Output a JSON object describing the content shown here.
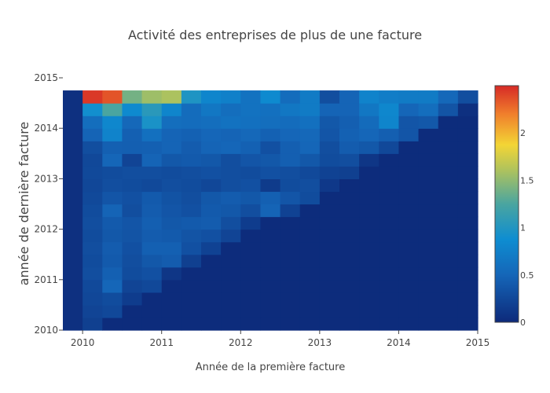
{
  "chart_data": {
    "type": "heatmap",
    "title": "Activité des entreprises de plus de une facture",
    "xlabel": "Année de la première facture",
    "ylabel": "année de dernière facture",
    "xlim": [
      2009.75,
      2015
    ],
    "ylim": [
      2010,
      2015
    ],
    "x_ticks": [
      "2010",
      "2011",
      "2012",
      "2013",
      "2014",
      "2015"
    ],
    "y_ticks": [
      "2010",
      "2011",
      "2012",
      "2013",
      "2014",
      "2015"
    ],
    "x_start": 2009.75,
    "y_start": 2010,
    "cell_size_years": 0.25,
    "colorscale": [
      [
        0.0,
        "#0d2a7a"
      ],
      [
        0.2,
        "#1566b8"
      ],
      [
        0.35,
        "#0e8dd1"
      ],
      [
        0.5,
        "#4aa5a0"
      ],
      [
        0.65,
        "#b3c45a"
      ],
      [
        0.75,
        "#f3d535"
      ],
      [
        0.88,
        "#f07f2c"
      ],
      [
        1.0,
        "#d62a26"
      ]
    ],
    "zmin": 0,
    "zmax": 2.5,
    "colorbar_ticks": [
      "0",
      "0.5",
      "1",
      "1.5",
      "2"
    ],
    "z": [
      [
        0.05,
        0.18,
        0.02,
        0.02,
        0.02,
        0.02,
        0.02,
        0.02,
        0.02,
        0.02,
        0.02,
        0.02,
        0.02,
        0.02,
        0.02,
        0.02,
        0.02,
        0.02,
        0.02,
        0.02,
        0.02
      ],
      [
        0.05,
        0.22,
        0.25,
        0.02,
        0.02,
        0.02,
        0.02,
        0.02,
        0.02,
        0.02,
        0.02,
        0.02,
        0.02,
        0.02,
        0.02,
        0.02,
        0.02,
        0.02,
        0.02,
        0.02,
        0.02
      ],
      [
        0.05,
        0.24,
        0.28,
        0.15,
        0.02,
        0.02,
        0.02,
        0.02,
        0.02,
        0.02,
        0.02,
        0.02,
        0.02,
        0.02,
        0.02,
        0.02,
        0.02,
        0.02,
        0.02,
        0.02,
        0.02
      ],
      [
        0.05,
        0.26,
        0.5,
        0.22,
        0.25,
        0.02,
        0.02,
        0.02,
        0.02,
        0.02,
        0.02,
        0.02,
        0.02,
        0.02,
        0.02,
        0.02,
        0.02,
        0.02,
        0.02,
        0.02,
        0.02
      ],
      [
        0.05,
        0.3,
        0.45,
        0.28,
        0.32,
        0.1,
        0.02,
        0.02,
        0.02,
        0.02,
        0.02,
        0.02,
        0.02,
        0.02,
        0.02,
        0.02,
        0.02,
        0.02,
        0.02,
        0.02,
        0.02
      ],
      [
        0.05,
        0.28,
        0.4,
        0.3,
        0.38,
        0.42,
        0.18,
        0.02,
        0.02,
        0.02,
        0.02,
        0.02,
        0.02,
        0.02,
        0.02,
        0.02,
        0.02,
        0.02,
        0.02,
        0.02,
        0.02
      ],
      [
        0.05,
        0.3,
        0.42,
        0.32,
        0.45,
        0.45,
        0.32,
        0.2,
        0.02,
        0.02,
        0.02,
        0.02,
        0.02,
        0.02,
        0.02,
        0.02,
        0.02,
        0.02,
        0.02,
        0.02,
        0.02
      ],
      [
        0.05,
        0.28,
        0.38,
        0.35,
        0.42,
        0.4,
        0.35,
        0.32,
        0.22,
        0.02,
        0.02,
        0.02,
        0.02,
        0.02,
        0.02,
        0.02,
        0.02,
        0.02,
        0.02,
        0.02,
        0.02
      ],
      [
        0.05,
        0.3,
        0.4,
        0.36,
        0.44,
        0.38,
        0.4,
        0.42,
        0.3,
        0.15,
        0.02,
        0.02,
        0.02,
        0.02,
        0.02,
        0.02,
        0.02,
        0.02,
        0.02,
        0.02,
        0.02
      ],
      [
        0.05,
        0.28,
        0.48,
        0.3,
        0.42,
        0.36,
        0.32,
        0.4,
        0.38,
        0.3,
        0.48,
        0.2,
        0.02,
        0.02,
        0.02,
        0.02,
        0.02,
        0.02,
        0.02,
        0.02,
        0.02
      ],
      [
        0.05,
        0.26,
        0.36,
        0.32,
        0.4,
        0.34,
        0.3,
        0.38,
        0.42,
        0.38,
        0.45,
        0.36,
        0.28,
        0.02,
        0.02,
        0.02,
        0.02,
        0.02,
        0.02,
        0.02,
        0.02
      ],
      [
        0.05,
        0.24,
        0.3,
        0.28,
        0.26,
        0.3,
        0.28,
        0.24,
        0.3,
        0.32,
        0.14,
        0.28,
        0.3,
        0.12,
        0.02,
        0.02,
        0.02,
        0.02,
        0.02,
        0.02,
        0.02
      ],
      [
        0.05,
        0.26,
        0.28,
        0.3,
        0.3,
        0.28,
        0.3,
        0.32,
        0.3,
        0.28,
        0.32,
        0.3,
        0.26,
        0.2,
        0.18,
        0.02,
        0.02,
        0.02,
        0.02,
        0.02,
        0.02
      ],
      [
        0.05,
        0.25,
        0.5,
        0.22,
        0.48,
        0.38,
        0.4,
        0.38,
        0.3,
        0.36,
        0.38,
        0.44,
        0.38,
        0.28,
        0.3,
        0.1,
        0.02,
        0.02,
        0.02,
        0.02,
        0.02
      ],
      [
        0.05,
        0.3,
        0.45,
        0.44,
        0.45,
        0.48,
        0.42,
        0.48,
        0.5,
        0.46,
        0.32,
        0.44,
        0.5,
        0.3,
        0.42,
        0.38,
        0.25,
        0.02,
        0.02,
        0.02,
        0.02
      ],
      [
        0.05,
        0.48,
        0.78,
        0.45,
        0.6,
        0.48,
        0.46,
        0.5,
        0.48,
        0.52,
        0.46,
        0.5,
        0.52,
        0.36,
        0.46,
        0.5,
        0.44,
        0.36,
        0.02,
        0.02,
        0.02
      ],
      [
        0.05,
        0.58,
        0.82,
        0.52,
        0.95,
        0.58,
        0.56,
        0.58,
        0.62,
        0.6,
        0.58,
        0.56,
        0.6,
        0.38,
        0.44,
        0.55,
        0.8,
        0.36,
        0.38,
        0.02,
        0.02
      ],
      [
        0.05,
        0.9,
        1.25,
        0.85,
        1.05,
        0.8,
        0.56,
        0.66,
        0.58,
        0.62,
        0.6,
        0.66,
        0.7,
        0.48,
        0.48,
        0.66,
        0.82,
        0.5,
        0.58,
        0.35,
        0.05
      ],
      [
        0.05,
        2.45,
        2.35,
        1.4,
        1.55,
        1.6,
        0.98,
        0.8,
        0.75,
        0.62,
        0.85,
        0.56,
        0.7,
        0.3,
        0.48,
        0.78,
        0.72,
        0.7,
        0.7,
        0.52,
        0.3
      ]
    ]
  }
}
